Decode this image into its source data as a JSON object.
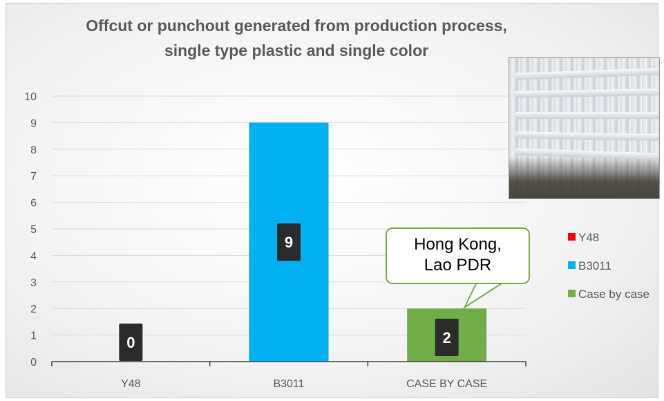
{
  "chart_data": {
    "type": "bar",
    "title_lines": [
      "Offcut or punchout generated from production process,",
      "single type plastic and single color"
    ],
    "categories": [
      "Y48",
      "B3011",
      "CASE BY CASE"
    ],
    "values": [
      0,
      9,
      2
    ],
    "data_labels": [
      "0",
      "9",
      "2"
    ],
    "series": [
      {
        "name": "Y48",
        "color": "#ff0000"
      },
      {
        "name": "B3011",
        "color": "#00b0f0"
      },
      {
        "name": "Case by case",
        "color": "#70ad47"
      }
    ],
    "ylim": [
      0,
      10
    ],
    "yticks": [
      "0",
      "1",
      "2",
      "3",
      "4",
      "5",
      "6",
      "7",
      "8",
      "9",
      "10"
    ],
    "grid": true,
    "legend_position": "right",
    "callout": {
      "lines": [
        "Hong Kong,",
        "Lao PDR"
      ],
      "target_category": "CASE BY CASE"
    },
    "label_box_color": "#2b2b2b",
    "photo_icon": "plastic-sheets-photo"
  }
}
